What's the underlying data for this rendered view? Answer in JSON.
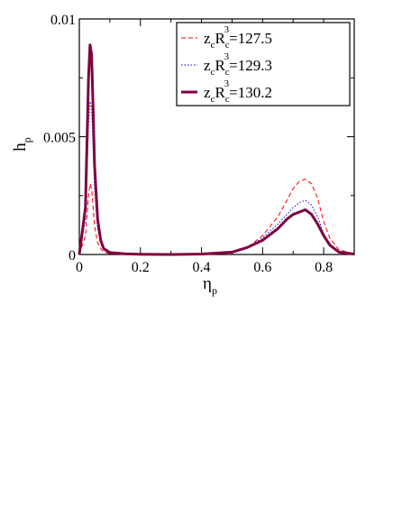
{
  "chart_data": {
    "type": "line",
    "xlabel": "η",
    "xlabel_sub": "p",
    "ylabel": "h",
    "ylabel_sub": "p",
    "xlim": [
      0.0,
      0.9
    ],
    "ylim": [
      0.0,
      0.01
    ],
    "x_ticks": [
      0.0,
      0.2,
      0.4,
      0.6,
      0.8
    ],
    "x_tick_labels": [
      "0",
      "0.2",
      "0.4",
      "0.6",
      "0.8"
    ],
    "y_ticks": [
      0.0,
      0.005,
      0.01
    ],
    "y_tick_labels": [
      "0",
      "0.005",
      "0.01"
    ],
    "grid": false,
    "legend_position": "top-right",
    "legend_label_prefix": {
      "z": "z",
      "z_sub": "c",
      "R": "R",
      "R_sub": "c",
      "R_sup": "3"
    },
    "series": [
      {
        "name": "z_cR_c^3=127.5",
        "value_label": "=127.5",
        "color": "#ff0000",
        "style": "dashed",
        "width": 1,
        "x": [
          0.0,
          0.02,
          0.03,
          0.035,
          0.04,
          0.045,
          0.05,
          0.06,
          0.07,
          0.08,
          0.1,
          0.15,
          0.2,
          0.3,
          0.4,
          0.5,
          0.55,
          0.6,
          0.65,
          0.68,
          0.7,
          0.72,
          0.74,
          0.76,
          0.78,
          0.8,
          0.82,
          0.85,
          0.9
        ],
        "y": [
          0.0,
          0.0008,
          0.0025,
          0.003,
          0.0028,
          0.002,
          0.0012,
          0.0005,
          0.00025,
          0.0001,
          4e-05,
          2e-05,
          1e-05,
          0.0,
          2e-05,
          0.0001,
          0.0003,
          0.0008,
          0.0016,
          0.0023,
          0.0028,
          0.0031,
          0.0032,
          0.003,
          0.0024,
          0.0014,
          0.0007,
          0.0002,
          3e-05
        ]
      },
      {
        "name": "z_cR_c^3=129.3",
        "value_label": "=129.3",
        "color": "#0000ff",
        "style": "dotted",
        "width": 1,
        "x": [
          0.0,
          0.02,
          0.03,
          0.035,
          0.04,
          0.045,
          0.05,
          0.06,
          0.07,
          0.08,
          0.1,
          0.15,
          0.2,
          0.3,
          0.4,
          0.5,
          0.55,
          0.6,
          0.65,
          0.68,
          0.7,
          0.72,
          0.74,
          0.76,
          0.78,
          0.8,
          0.82,
          0.85,
          0.9
        ],
        "y": [
          0.0,
          0.0015,
          0.0055,
          0.0065,
          0.0062,
          0.0045,
          0.0028,
          0.0011,
          0.0005,
          0.0002,
          7e-05,
          3e-05,
          1e-05,
          0.0,
          2e-05,
          0.0001,
          0.0003,
          0.0007,
          0.0013,
          0.0017,
          0.002,
          0.0022,
          0.0023,
          0.0021,
          0.0016,
          0.0009,
          0.0004,
          0.0001,
          2e-05
        ]
      },
      {
        "name": "z_cR_c^3=130.2",
        "value_label": "=130.2",
        "color": "#800040",
        "style": "solid",
        "width": 3,
        "x": [
          0.0,
          0.02,
          0.03,
          0.035,
          0.04,
          0.045,
          0.05,
          0.06,
          0.07,
          0.08,
          0.1,
          0.15,
          0.2,
          0.3,
          0.4,
          0.5,
          0.55,
          0.6,
          0.65,
          0.68,
          0.7,
          0.72,
          0.74,
          0.76,
          0.78,
          0.8,
          0.82,
          0.85,
          0.9
        ],
        "y": [
          0.0,
          0.002,
          0.0075,
          0.0089,
          0.0085,
          0.0062,
          0.0038,
          0.0015,
          0.0006,
          0.00025,
          8e-05,
          3e-05,
          1e-05,
          0.0,
          2e-05,
          0.0001,
          0.0003,
          0.0006,
          0.0011,
          0.0015,
          0.0017,
          0.0018,
          0.0019,
          0.0017,
          0.0013,
          0.0008,
          0.0004,
          0.0001,
          2e-05
        ]
      }
    ]
  }
}
